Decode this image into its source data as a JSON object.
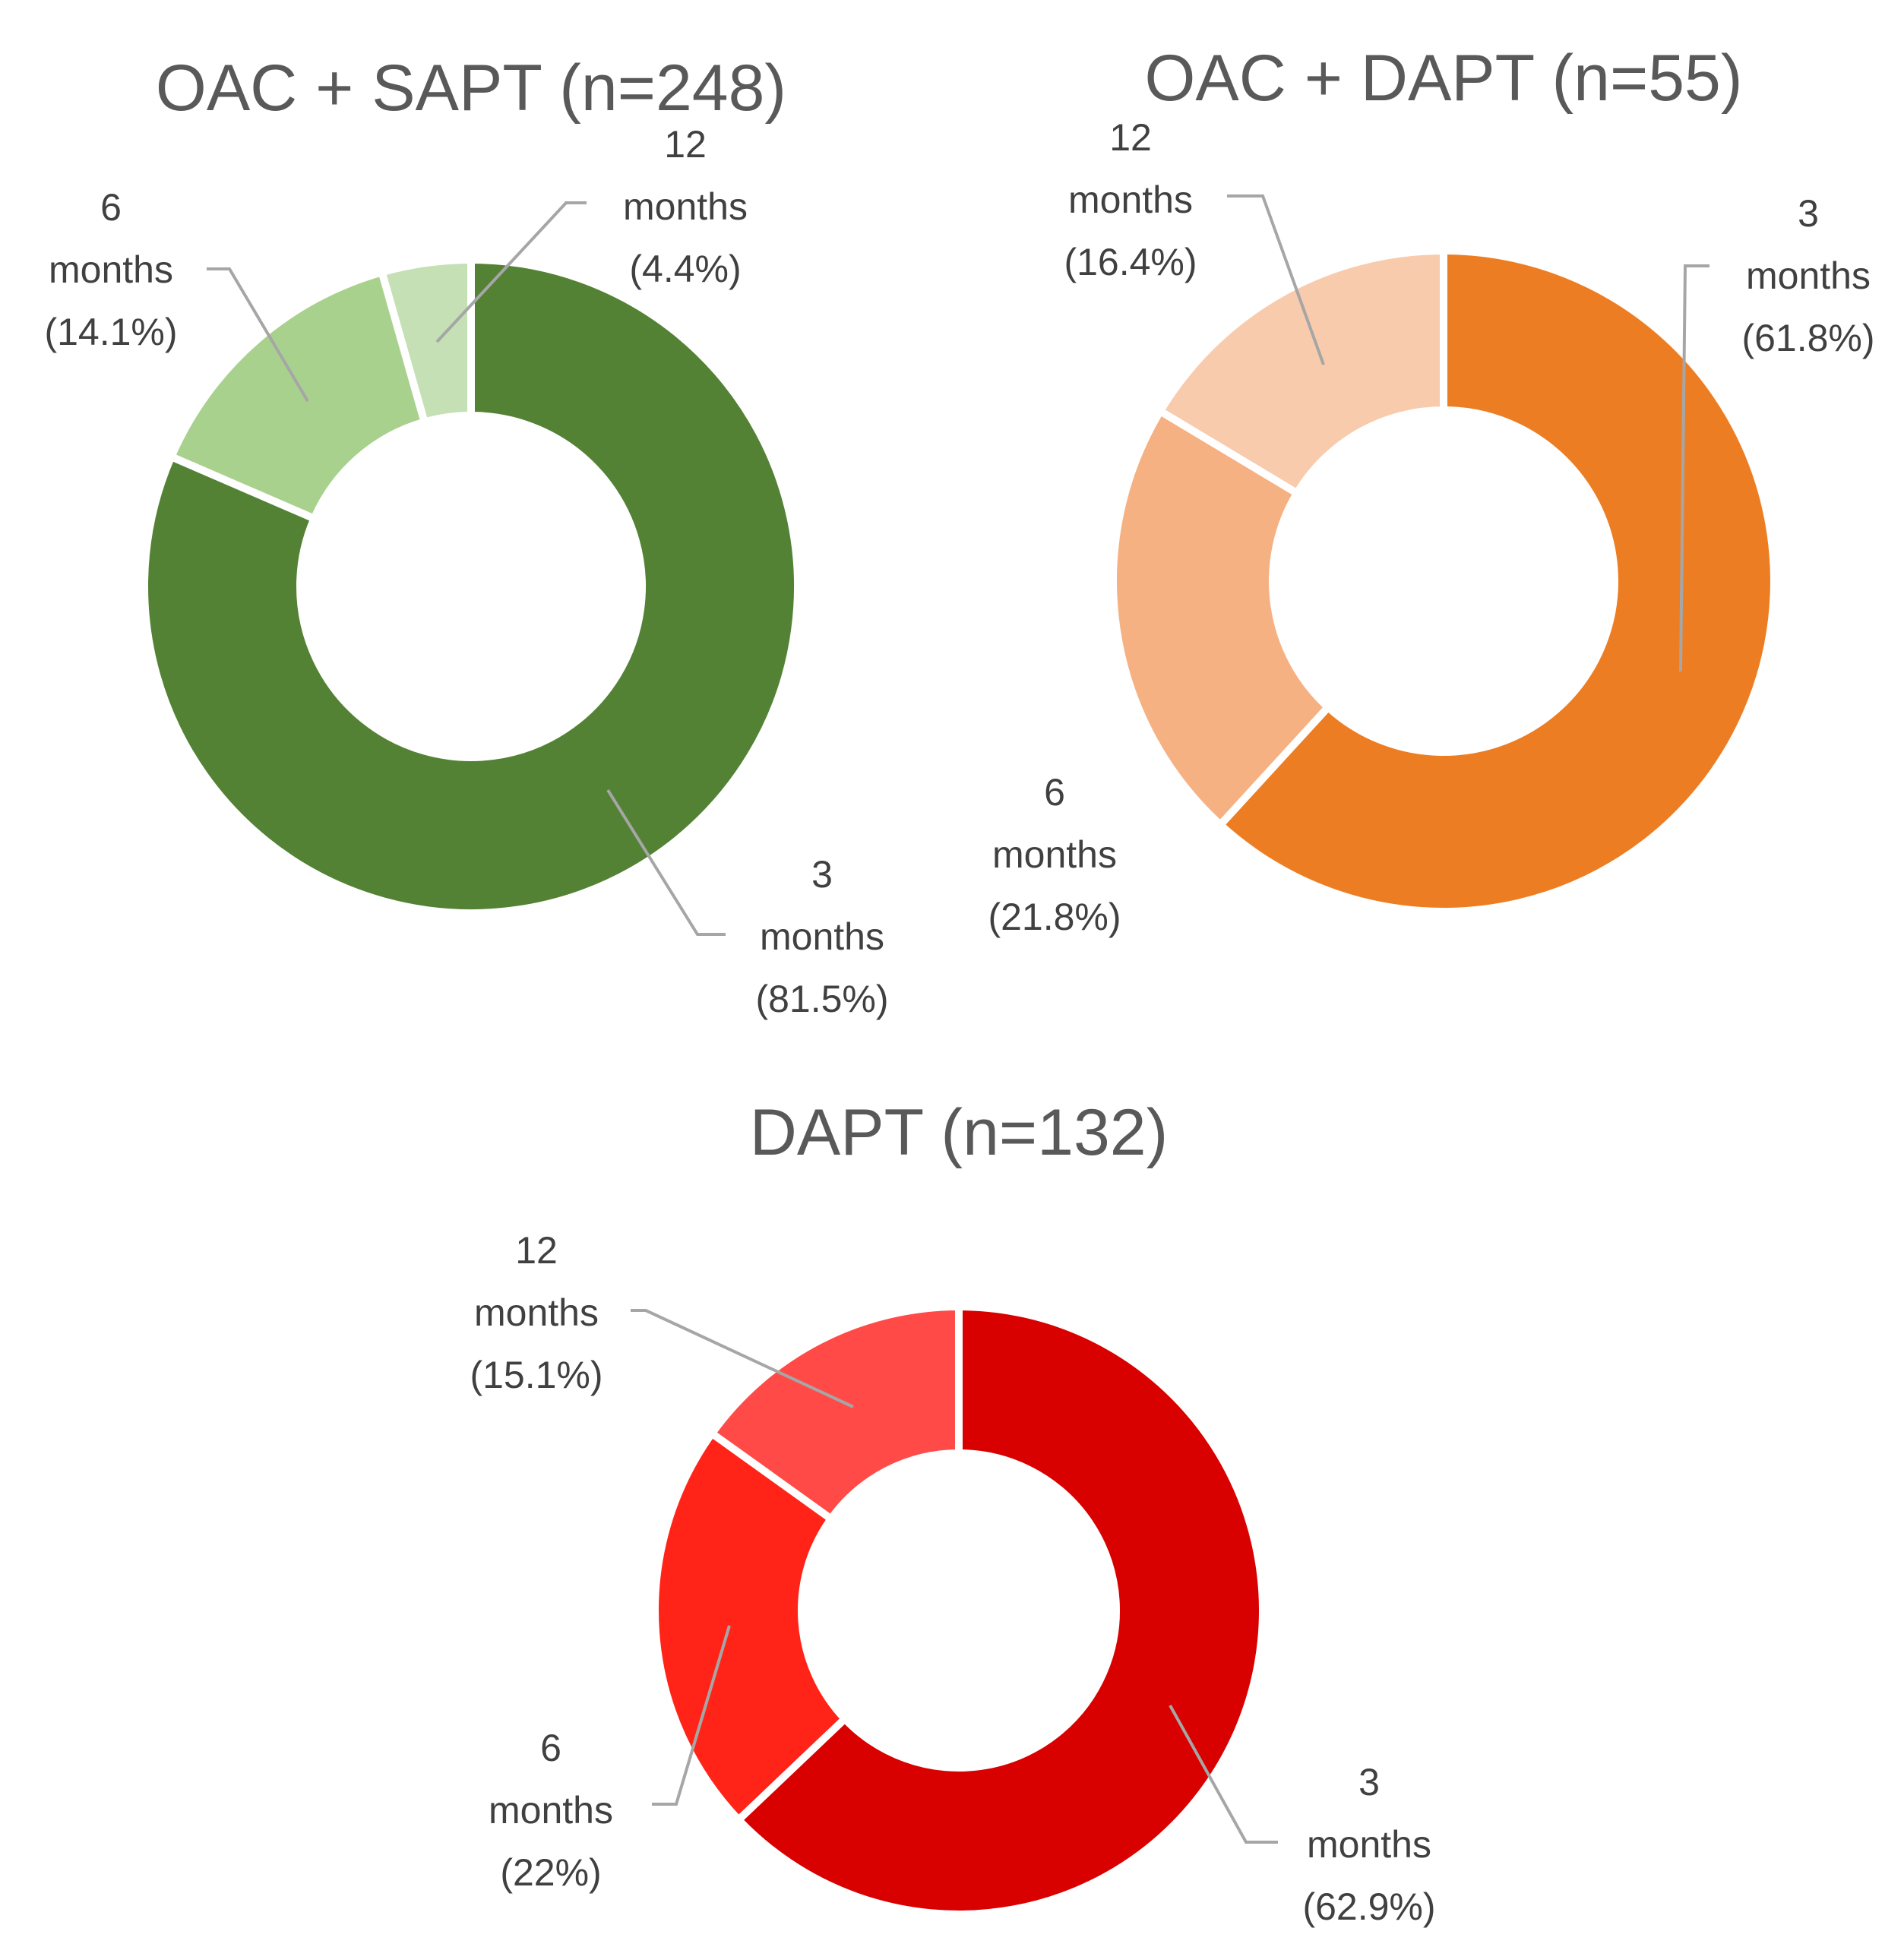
{
  "chart_data": [
    {
      "type": "pie",
      "variant": "donut",
      "title": "OAC + SAPT (n=248)",
      "slices": [
        {
          "label": "3 months (81.5%)",
          "line1": "3",
          "line2": "months",
          "line3": "(81.5%)",
          "value": 81.5,
          "color": "#548235"
        },
        {
          "label": "6 months (14.1%)",
          "line1": "6",
          "line2": "months",
          "line3": "(14.1%)",
          "value": 14.1,
          "color": "#a9d18e"
        },
        {
          "label": "12 months (4.4%)",
          "line1": "12",
          "line2": "months",
          "line3": "(4.4%)",
          "value": 4.4,
          "color": "#c5e0b4"
        }
      ]
    },
    {
      "type": "pie",
      "variant": "donut",
      "title": "OAC + DAPT (n=55)",
      "slices": [
        {
          "label": "3 months (61.8%)",
          "line1": "3",
          "line2": "months",
          "line3": "(61.8%)",
          "value": 61.8,
          "color": "#ed7d22"
        },
        {
          "label": "6 months (21.8%)",
          "line1": "6",
          "line2": "months",
          "line3": "(21.8%)",
          "value": 21.8,
          "color": "#f6b183"
        },
        {
          "label": "12 months (16.4%)",
          "line1": "12",
          "line2": "months",
          "line3": "(16.4%)",
          "value": 16.4,
          "color": "#f9cbad"
        }
      ]
    },
    {
      "type": "pie",
      "variant": "donut",
      "title": "DAPT (n=132)",
      "slices": [
        {
          "label": "3 months (62.9%)",
          "line1": "3",
          "line2": "months",
          "line3": "(62.9%)",
          "value": 62.9,
          "color": "#d90000"
        },
        {
          "label": "6 months (22%)",
          "line1": "6",
          "line2": "months",
          "line3": "(22%)",
          "value": 22.0,
          "color": "#ff2318"
        },
        {
          "label": "12 months (15.1%)",
          "line1": "12",
          "line2": "months",
          "line3": "(15.1%)",
          "value": 15.1,
          "color": "#ff4a47"
        }
      ]
    }
  ]
}
